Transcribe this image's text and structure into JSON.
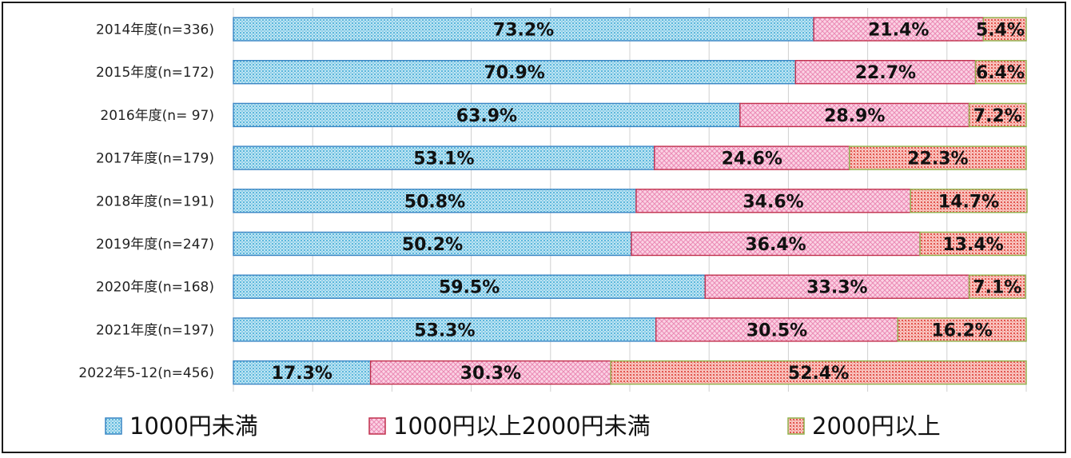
{
  "chart_data": {
    "type": "bar",
    "orientation": "horizontal",
    "stacked": "percent",
    "categories": [
      "2014年度(n=336)",
      "2015年度(n=172)",
      "2016年度(n=  97)",
      "2017年度(n=179)",
      "2018年度(n=191)",
      "2019年度(n=247)",
      "2020年度(n=168)",
      "2021年度(n=197)",
      "2022年5-12(n=456)"
    ],
    "series": [
      {
        "name": "1000円未満",
        "values": [
          73.2,
          70.9,
          63.9,
          53.1,
          50.8,
          50.2,
          59.5,
          53.3,
          17.3
        ],
        "labels": [
          "73.2%",
          "70.9%",
          "63.9%",
          "53.1%",
          "50.8%",
          "50.2%",
          "59.5%",
          "53.3%",
          "17.3%"
        ],
        "color": "#5fb8d9"
      },
      {
        "name": "1000円以上2000円未満",
        "values": [
          21.4,
          22.7,
          28.9,
          24.6,
          34.6,
          36.4,
          33.3,
          30.5,
          30.3
        ],
        "labels": [
          "21.4%",
          "22.7%",
          "28.9%",
          "24.6%",
          "34.6%",
          "36.4%",
          "33.3%",
          "30.5%",
          "30.3%"
        ],
        "color": "#e0609a"
      },
      {
        "name": "2000円以上",
        "values": [
          5.4,
          6.4,
          7.2,
          22.3,
          14.7,
          13.4,
          7.1,
          16.2,
          52.4
        ],
        "labels": [
          "5.4%",
          "6.4%",
          "7.2%",
          "22.3%",
          "14.7%",
          "13.4%",
          "7.1%",
          "16.2%",
          "52.4%"
        ],
        "color": "#e2564f"
      }
    ],
    "xlim": [
      0,
      100
    ],
    "grid": true,
    "legend": "bottom",
    "title": "",
    "xlabel": "",
    "ylabel": ""
  },
  "colors": {
    "series1_fill": "#6cc3e0",
    "series1_border": "#3b86c4",
    "series2_fill": "#f3a6c8",
    "series2_border": "#c0304d",
    "series3_fill": "#ec6e64",
    "series3_border": "#8fb04a",
    "grid": "#d0d0d0"
  }
}
